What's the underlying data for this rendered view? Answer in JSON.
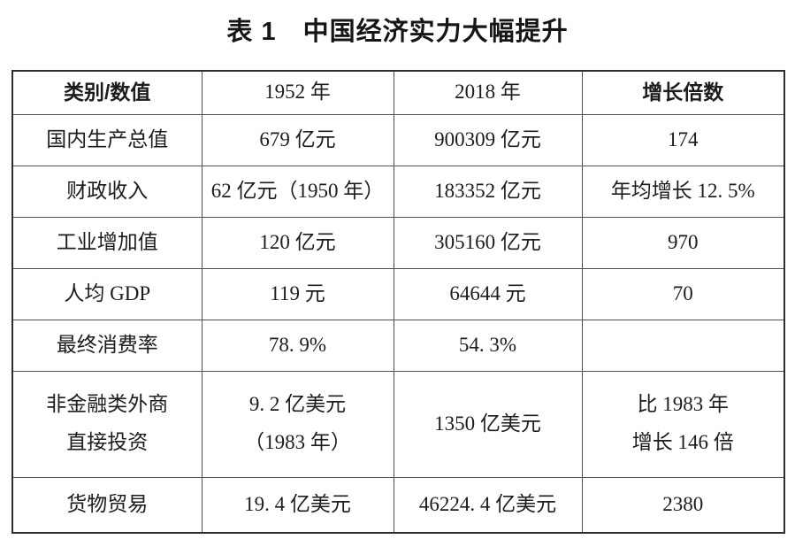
{
  "title": "表 1　中国经济实力大幅提升",
  "table": {
    "headers": [
      "类别/数值",
      "1952 年",
      "2018 年",
      "增长倍数"
    ],
    "rows": [
      [
        "国内生产总值",
        "679 亿元",
        "900309 亿元",
        "174"
      ],
      [
        "财政收入",
        "62 亿元（1950 年）",
        "183352 亿元",
        "年均增长 12. 5%"
      ],
      [
        "工业增加值",
        "120 亿元",
        "305160 亿元",
        "970"
      ],
      [
        "人均 GDP",
        "119 元",
        "64644 元",
        "70"
      ],
      [
        "最终消费率",
        "78. 9%",
        "54. 3%",
        ""
      ],
      [
        "非金融类外商\n直接投资",
        "9. 2 亿美元\n（1983 年）",
        "1350 亿美元",
        "比 1983 年\n增长 146 倍"
      ],
      [
        "货物贸易",
        "19. 4 亿美元",
        "46224. 4 亿美元",
        "2380"
      ]
    ]
  }
}
